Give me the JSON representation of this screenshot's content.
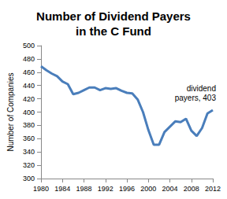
{
  "chart_data": {
    "type": "line",
    "title": "Number of Dividend Payers\nin the C Fund",
    "y_label": "Number of Companies",
    "x": [
      1980,
      1981,
      1982,
      1983,
      1984,
      1985,
      1986,
      1987,
      1988,
      1989,
      1990,
      1991,
      1992,
      1993,
      1994,
      1995,
      1996,
      1997,
      1998,
      1999,
      2000,
      2001,
      2002,
      2003,
      2004,
      2005,
      2006,
      2007,
      2008,
      2009,
      2010,
      2011,
      2012
    ],
    "values": [
      469,
      463,
      458,
      454,
      446,
      442,
      427,
      429,
      433,
      437,
      437,
      433,
      436,
      435,
      436,
      432,
      429,
      428,
      419,
      400,
      373,
      351,
      351,
      370,
      378,
      386,
      385,
      390,
      372,
      364,
      376,
      398,
      403
    ],
    "color": "#4a7ebb",
    "xlim": [
      1980,
      2012
    ],
    "xticks": [
      1980,
      1984,
      1988,
      1992,
      1996,
      2000,
      2004,
      2008,
      2012
    ],
    "ylim": [
      300,
      500
    ],
    "yticks": [
      300,
      320,
      340,
      360,
      380,
      400,
      420,
      440,
      460,
      480,
      500
    ],
    "grid": false,
    "annotations": [
      {
        "text": "dividend\npayers, 403",
        "x": 2012,
        "y": 403
      }
    ]
  }
}
